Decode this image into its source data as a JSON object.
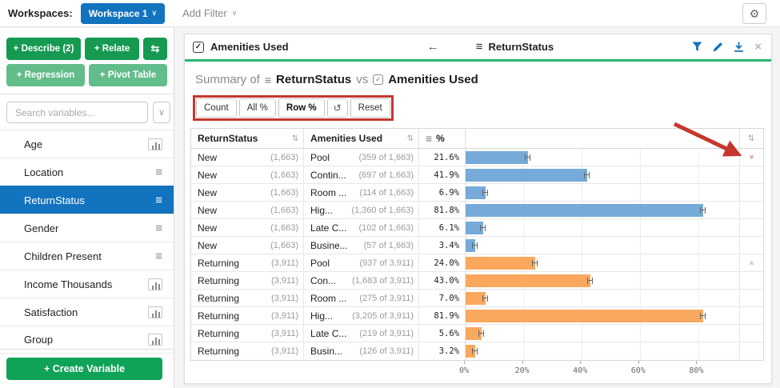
{
  "topbar": {
    "workspaces_label": "Workspaces:",
    "workspace_button_label": "Workspace 1",
    "workspace_caret": "∨",
    "add_filter_label": "Add Filter",
    "add_filter_caret": "∨",
    "gear_icon": "⚙"
  },
  "sidebar": {
    "describe_button": "+ Describe (2)",
    "relate_button": "+ Relate",
    "swap_button": "⇆",
    "regression_button": "+ Regression",
    "pivot_table_button": "+ Pivot Table",
    "search_placeholder": "Search variables...",
    "dropdown_caret": "∨",
    "variables": [
      {
        "label": "Age",
        "icon": "histogram-icon",
        "selected": false
      },
      {
        "label": "Location",
        "icon": "list-icon",
        "selected": false
      },
      {
        "label": "ReturnStatus",
        "icon": "list-icon",
        "selected": true
      },
      {
        "label": "Gender",
        "icon": "list-icon",
        "selected": false
      },
      {
        "label": "Children Present",
        "icon": "list-icon",
        "selected": false
      },
      {
        "label": "Income Thousands",
        "icon": "histogram-icon",
        "selected": false
      },
      {
        "label": "Satisfaction",
        "icon": "histogram-icon",
        "selected": false
      },
      {
        "label": "Group",
        "icon": "histogram-icon",
        "selected": false
      }
    ],
    "create_variable_button": "+ Create Variable"
  },
  "panel": {
    "header": {
      "checkbox_check": "✓",
      "title": "Amenities Used",
      "back_arrow": "←",
      "context_hamburger": "≡",
      "context_variable": "ReturnStatus",
      "close_icon": "×"
    },
    "summary_title": {
      "prefix": "Summary of",
      "hamburger": "≡",
      "variable_1": "ReturnStatus",
      "connector": "vs",
      "checkbox_check": "✓",
      "variable_2": "Amenities Used"
    },
    "toolbar": {
      "count_button": "Count",
      "all_pct_button": "All %",
      "row_pct_button": "Row %",
      "active_button": "Row %",
      "refresh_button": "↺",
      "reset_button": "Reset"
    },
    "table": {
      "col1_header": "ReturnStatus",
      "col2_header": "Amenities Used",
      "col3_hamburger": "≡",
      "col3_header": "%",
      "sort_glyph": "⇅",
      "rows": [
        {
          "return_status": "New",
          "status_count": "(1,663)",
          "amenity": "Pool",
          "amenity_count": "(359 of 1,663)",
          "pct_label": "21.6%",
          "pct": 21.6,
          "series": "new",
          "right_icon": "sort-icon-red"
        },
        {
          "return_status": "New",
          "status_count": "(1,663)",
          "amenity": "Contin...",
          "amenity_count": "(697 of 1,663)",
          "pct_label": "41.9%",
          "pct": 41.9,
          "series": "new",
          "right_icon": null
        },
        {
          "return_status": "New",
          "status_count": "(1,663)",
          "amenity": "Room ...",
          "amenity_count": "(114 of 1,663)",
          "pct_label": "6.9%",
          "pct": 6.9,
          "series": "new",
          "right_icon": null
        },
        {
          "return_status": "New",
          "status_count": "(1,663)",
          "amenity": "Hig...",
          "amenity_count": "(1,360 of 1,663)",
          "pct_label": "81.8%",
          "pct": 81.8,
          "series": "new",
          "right_icon": null
        },
        {
          "return_status": "New",
          "status_count": "(1,663)",
          "amenity": "Late C...",
          "amenity_count": "(102 of 1,663)",
          "pct_label": "6.1%",
          "pct": 6.1,
          "series": "new",
          "right_icon": null
        },
        {
          "return_status": "New",
          "status_count": "(1,663)",
          "amenity": "Busine...",
          "amenity_count": "(57 of 1,663)",
          "pct_label": "3.4%",
          "pct": 3.4,
          "series": "new",
          "right_icon": null
        },
        {
          "return_status": "Returning",
          "status_count": "(3,911)",
          "amenity": "Pool",
          "amenity_count": "(937 of 3,911)",
          "pct_label": "24.0%",
          "pct": 24.0,
          "series": "returning",
          "right_icon": "expand-icon"
        },
        {
          "return_status": "Returning",
          "status_count": "(3,911)",
          "amenity": "Con...",
          "amenity_count": "(1,683 of 3,911)",
          "pct_label": "43.0%",
          "pct": 43.0,
          "series": "returning",
          "right_icon": null
        },
        {
          "return_status": "Returning",
          "status_count": "(3,911)",
          "amenity": "Room ...",
          "amenity_count": "(275 of 3,911)",
          "pct_label": "7.0%",
          "pct": 7.0,
          "series": "returning",
          "right_icon": null
        },
        {
          "return_status": "Returning",
          "status_count": "(3,911)",
          "amenity": "Hig...",
          "amenity_count": "(3,205 of 3,911)",
          "pct_label": "81.9%",
          "pct": 81.9,
          "series": "returning",
          "right_icon": null
        },
        {
          "return_status": "Returning",
          "status_count": "(3,911)",
          "amenity": "Late C...",
          "amenity_count": "(219 of 3,911)",
          "pct_label": "5.6%",
          "pct": 5.6,
          "series": "returning",
          "right_icon": null
        },
        {
          "return_status": "Returning",
          "status_count": "(3,911)",
          "amenity": "Busin...",
          "amenity_count": "(126 of 3,911)",
          "pct_label": "3.2%",
          "pct": 3.2,
          "series": "returning",
          "right_icon": null
        }
      ],
      "axis_ticks": [
        "0%",
        "20%",
        "40%",
        "60%",
        "80%"
      ]
    }
  },
  "colors": {
    "accent_blue": "#1273bf",
    "green_dark": "#169a52",
    "green_light": "#63bd8b",
    "green_create": "#10a257",
    "header_underline": "#2bb673",
    "bar_blue": "#76aad8",
    "bar_orange": "#f9a85e",
    "annotation_red": "#c4372f"
  },
  "chart_data": {
    "type": "bar",
    "orientation": "horizontal",
    "title": "Summary of ReturnStatus vs Amenities Used",
    "categories": [
      "Pool",
      "Contin...",
      "Room ...",
      "Hig...",
      "Late C...",
      "Busine..."
    ],
    "series": [
      {
        "name": "New",
        "total": 1663,
        "counts": [
          359,
          697,
          114,
          1360,
          102,
          57
        ],
        "values": [
          21.6,
          41.9,
          6.9,
          81.8,
          6.1,
          3.4
        ],
        "color": "#76aad8"
      },
      {
        "name": "Returning",
        "total": 3911,
        "counts": [
          937,
          1683,
          275,
          3205,
          219,
          126
        ],
        "values": [
          24.0,
          43.0,
          7.0,
          81.9,
          5.6,
          3.2
        ],
        "color": "#f9a85e"
      }
    ],
    "xlabel": "Row %",
    "xlim": [
      0,
      90
    ],
    "ticks": [
      "0%",
      "20%",
      "40%",
      "60%",
      "80%"
    ],
    "grid": true,
    "legend_position": "none"
  }
}
